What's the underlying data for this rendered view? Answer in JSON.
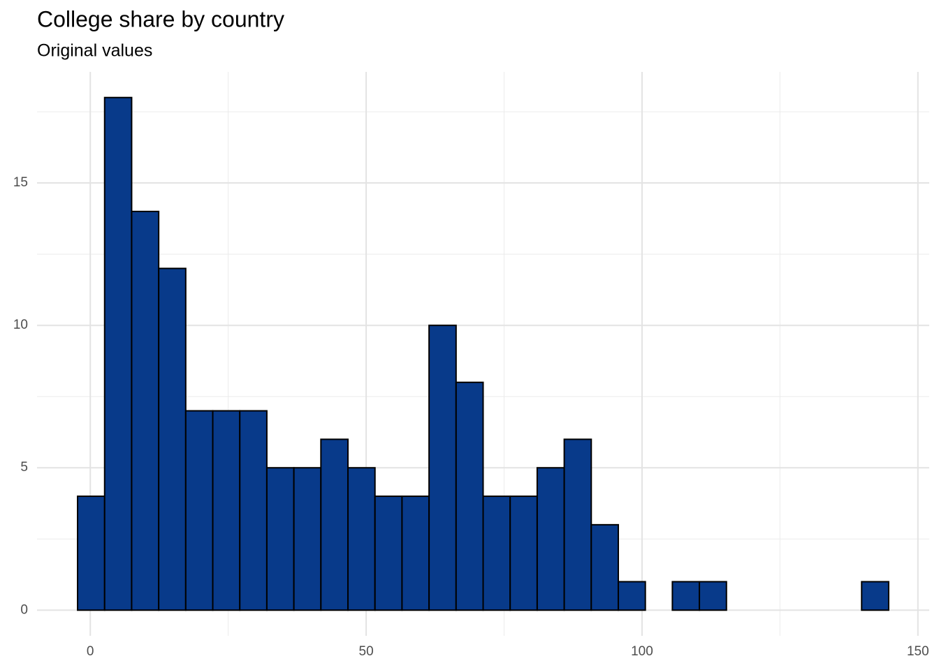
{
  "chart_data": {
    "type": "histogram",
    "title": "College share by country",
    "subtitle": "Original values",
    "bins": [
      -2.3,
      2.6,
      7.5,
      12.4,
      17.3,
      22.2,
      27.1,
      32,
      36.9,
      41.8,
      46.7,
      51.6,
      56.5,
      61.4,
      66.3,
      71.2,
      76.1,
      81,
      85.9,
      90.8,
      95.7,
      100.6,
      105.5,
      110.4,
      115.3,
      120.2,
      125.1,
      130,
      134.9,
      139.8,
      144.7
    ],
    "values": [
      4,
      18,
      14,
      12,
      7,
      7,
      7,
      5,
      5,
      6,
      5,
      4,
      4,
      10,
      8,
      4,
      4,
      5,
      6,
      3,
      1,
      0,
      1,
      1,
      0,
      0,
      0,
      0,
      0,
      1
    ],
    "color": "#083a8a",
    "edgecolor": "#000000",
    "xlim": [
      -9.65,
      152.05
    ],
    "xticks": [
      0,
      50,
      100,
      150
    ],
    "xminor": [
      25,
      75,
      125
    ],
    "ylim": [
      -0.9,
      18.9
    ],
    "yticks": [
      0,
      5,
      10,
      15
    ],
    "yminor": [
      2.5,
      7.5,
      12.5,
      17.5
    ],
    "grid": true
  }
}
